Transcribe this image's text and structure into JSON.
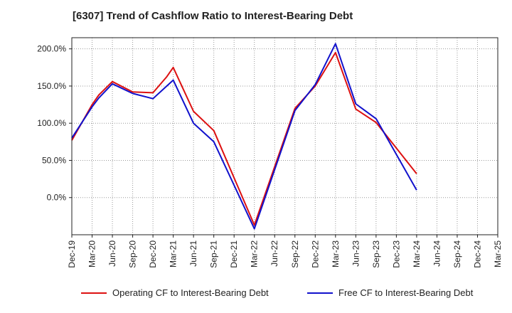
{
  "title": "[6307]  Trend of Cashflow Ratio to Interest-Bearing Debt",
  "chart_data": {
    "type": "line",
    "title": "[6307]  Trend of Cashflow Ratio to Interest-Bearing Debt",
    "xlabel": "",
    "ylabel": "",
    "x": [
      "Dec-19",
      "Mar-20",
      "Jun-20",
      "Sep-20",
      "Dec-20",
      "Mar-21",
      "Jun-21",
      "Sep-21",
      "Dec-21",
      "Mar-22",
      "Jun-22",
      "Sep-22",
      "Dec-22",
      "Mar-23",
      "Jun-23",
      "Sep-23",
      "Dec-23",
      "Mar-24",
      "Jun-24",
      "Sep-24",
      "Dec-24",
      "Mar-25"
    ],
    "y_tick_labels": [
      "200.0%",
      "150.0%",
      "100.0%",
      "50.0%",
      "0.0%"
    ],
    "y_ticks": [
      200,
      150,
      100,
      50,
      0
    ],
    "ylim": [
      -50,
      215
    ],
    "grid": true,
    "legend_position": "bottom",
    "series": [
      {
        "name": "Operating CF to Interest-Bearing Debt",
        "color": "#dd1111",
        "points": [
          [
            "Dec-19",
            77
          ],
          [
            "Mar-20",
            125
          ],
          [
            "Apr-20",
            138
          ],
          [
            "Jun-20",
            156
          ],
          [
            "Sep-20",
            142
          ],
          [
            "Dec-20",
            141
          ],
          [
            "Feb-21",
            162
          ],
          [
            "Mar-21",
            175
          ],
          [
            "Jun-21",
            116
          ],
          [
            "Sep-21",
            90
          ],
          [
            "Mar-22",
            -37
          ],
          [
            "Sep-22",
            120
          ],
          [
            "Dec-22",
            150
          ],
          [
            "Mar-23",
            195
          ],
          [
            "Jun-23",
            119
          ],
          [
            "Sep-23",
            101
          ],
          [
            "Mar-24",
            32
          ]
        ]
      },
      {
        "name": "Free CF to Interest-Bearing Debt",
        "color": "#1111cc",
        "points": [
          [
            "Dec-19",
            80
          ],
          [
            "Mar-20",
            122
          ],
          [
            "Apr-20",
            134
          ],
          [
            "Jun-20",
            153
          ],
          [
            "Sep-20",
            140
          ],
          [
            "Dec-20",
            133
          ],
          [
            "Mar-21",
            158
          ],
          [
            "Jun-21",
            100
          ],
          [
            "Sep-21",
            75
          ],
          [
            "Mar-22",
            -42
          ],
          [
            "Sep-22",
            117
          ],
          [
            "Dec-22",
            152
          ],
          [
            "Mar-23",
            207
          ],
          [
            "Jun-23",
            126
          ],
          [
            "Sep-23",
            106
          ],
          [
            "Mar-24",
            10
          ]
        ]
      }
    ]
  }
}
